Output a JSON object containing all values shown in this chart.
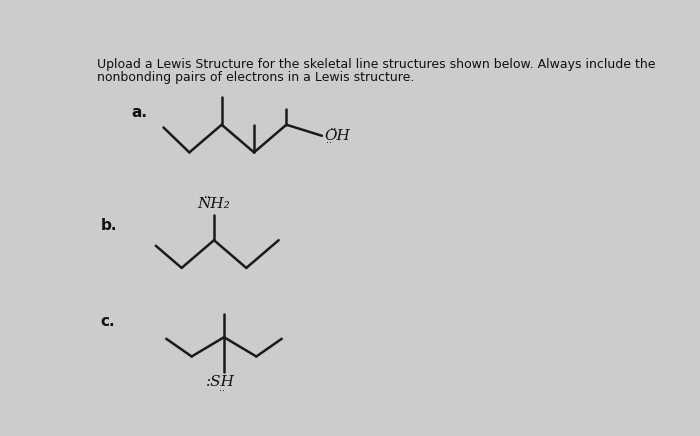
{
  "title_line1": "Upload a Lewis Structure for the skeletal line structures shown below. Always include the",
  "title_line2": "nonbonding pairs of electrons in a Lewis structure.",
  "bg_color": "#cccccc",
  "label_a": "a.",
  "label_b": "b.",
  "label_c": "c.",
  "text_color": "#111111",
  "line_color": "#1a1a1a",
  "line_width": 1.8,
  "figwidth": 7.0,
  "figheight": 4.36,
  "dpi": 100
}
